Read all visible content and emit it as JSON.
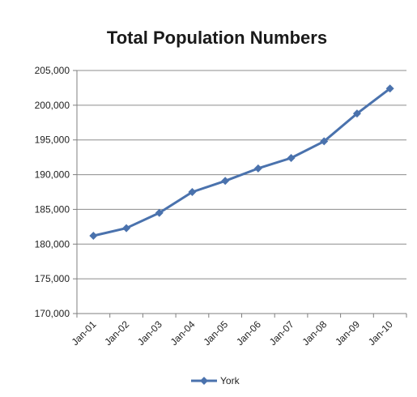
{
  "chart_data": {
    "type": "line",
    "title": "Total Population Numbers",
    "xlabel": "",
    "ylabel": "",
    "categories": [
      "Jan-01",
      "Jan-02",
      "Jan-03",
      "Jan-04",
      "Jan-05",
      "Jan-06",
      "Jan-07",
      "Jan-08",
      "Jan-09",
      "Jan-10"
    ],
    "series": [
      {
        "name": "York",
        "values": [
          181200,
          182300,
          184500,
          187500,
          189100,
          190900,
          192400,
          194800,
          198800,
          202400
        ]
      }
    ],
    "ylim": [
      170000,
      205000
    ],
    "yticks": [
      170000,
      175000,
      180000,
      185000,
      190000,
      195000,
      200000,
      205000
    ],
    "ytick_labels": [
      "170,000",
      "175,000",
      "180,000",
      "185,000",
      "190,000",
      "195,000",
      "200,000",
      "205,000"
    ],
    "grid": true,
    "legend_position": "bottom",
    "colors": {
      "series": "#4a72ad",
      "grid": "#8c8c8c",
      "axis": "#7f7f7f"
    }
  }
}
